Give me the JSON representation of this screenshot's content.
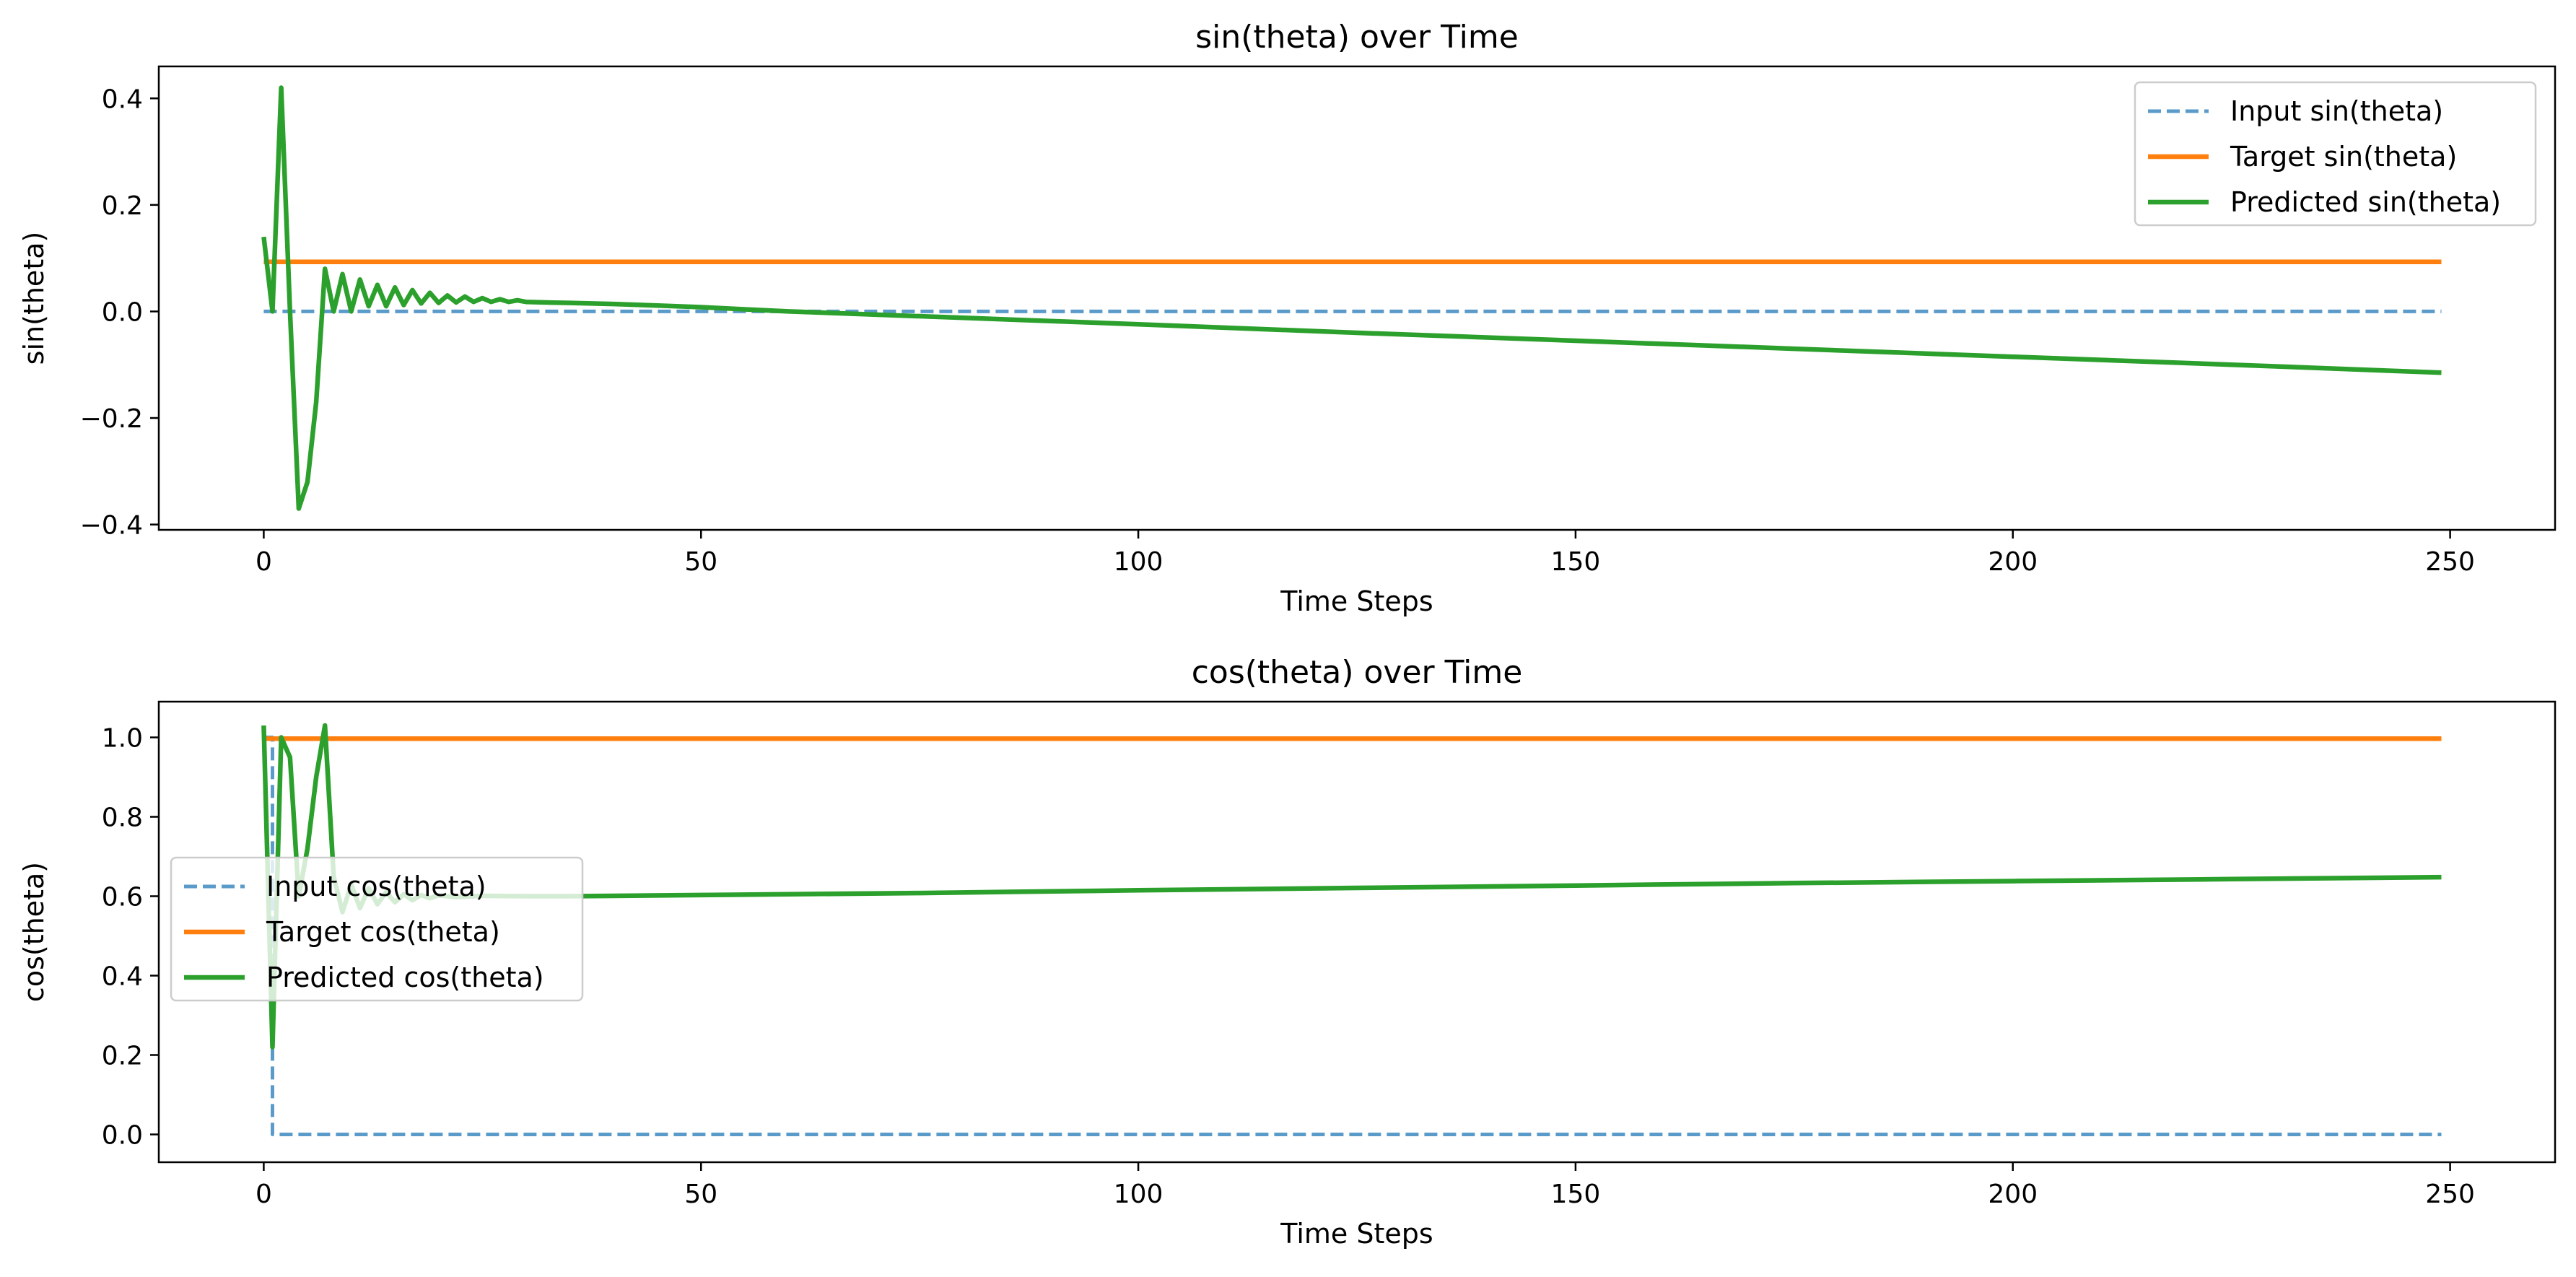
{
  "chart_data": [
    {
      "type": "line",
      "title": "sin(theta) over Time",
      "xlabel": "Time Steps",
      "ylabel": "sin(theta)",
      "xlim": [
        -12,
        262
      ],
      "ylim": [
        -0.41,
        0.46
      ],
      "xticks": [
        0,
        50,
        100,
        150,
        200,
        250
      ],
      "yticks": [
        -0.4,
        -0.2,
        0.0,
        0.2,
        0.4
      ],
      "ytick_labels": [
        "−0.4",
        "−0.2",
        "0.0",
        "0.2",
        "0.4"
      ],
      "grid": false,
      "legend_position": "upper right",
      "series": [
        {
          "name": "Input sin(theta)",
          "color": "#5b9bc9",
          "style": "dashed",
          "x": [
            0,
            1,
            2,
            249
          ],
          "y": [
            0.0,
            0.0,
            0.0,
            0.0
          ]
        },
        {
          "name": "Target sin(theta)",
          "color": "#ff7f0e",
          "style": "solid",
          "x": [
            0,
            249
          ],
          "y": [
            0.093,
            0.093
          ]
        },
        {
          "name": "Predicted sin(theta)",
          "color": "#2ca02c",
          "style": "solid",
          "x": [
            0,
            1,
            2,
            3,
            4,
            5,
            6,
            7,
            8,
            9,
            10,
            11,
            12,
            13,
            14,
            15,
            16,
            17,
            18,
            19,
            20,
            21,
            22,
            23,
            24,
            25,
            26,
            27,
            28,
            29,
            30,
            32,
            35,
            40,
            45,
            50,
            55,
            60,
            80,
            100,
            125,
            150,
            175,
            200,
            225,
            249
          ],
          "y": [
            0.14,
            0.0,
            0.42,
            0.0,
            -0.37,
            -0.32,
            -0.17,
            0.08,
            0.0,
            0.07,
            0.0,
            0.06,
            0.01,
            0.05,
            0.01,
            0.045,
            0.012,
            0.04,
            0.015,
            0.035,
            0.016,
            0.03,
            0.017,
            0.028,
            0.018,
            0.025,
            0.018,
            0.023,
            0.018,
            0.021,
            0.018,
            0.017,
            0.016,
            0.014,
            0.011,
            0.008,
            0.004,
            0.0,
            -0.012,
            -0.024,
            -0.04,
            -0.055,
            -0.07,
            -0.085,
            -0.1,
            -0.115
          ]
        }
      ]
    },
    {
      "type": "line",
      "title": "cos(theta) over Time",
      "xlabel": "Time Steps",
      "ylabel": "cos(theta)",
      "xlim": [
        -12,
        262
      ],
      "ylim": [
        -0.07,
        1.09
      ],
      "xticks": [
        0,
        50,
        100,
        150,
        200,
        250
      ],
      "yticks": [
        0.0,
        0.2,
        0.4,
        0.6,
        0.8,
        1.0
      ],
      "ytick_labels": [
        "0.0",
        "0.2",
        "0.4",
        "0.6",
        "0.8",
        "1.0"
      ],
      "grid": false,
      "legend_position": "center left",
      "series": [
        {
          "name": "Input cos(theta)",
          "color": "#5b9bc9",
          "style": "dashed",
          "x": [
            0,
            1,
            1,
            249
          ],
          "y": [
            1.0,
            1.0,
            0.0,
            0.0
          ]
        },
        {
          "name": "Target cos(theta)",
          "color": "#ff7f0e",
          "style": "solid",
          "x": [
            0,
            249
          ],
          "y": [
            0.997,
            0.997
          ]
        },
        {
          "name": "Predicted cos(theta)",
          "color": "#2ca02c",
          "style": "solid",
          "x": [
            0,
            1,
            2,
            3,
            4,
            5,
            6,
            7,
            8,
            9,
            10,
            11,
            12,
            13,
            14,
            15,
            16,
            17,
            18,
            19,
            20,
            22,
            25,
            30,
            35,
            40,
            50,
            75,
            100,
            125,
            150,
            175,
            200,
            225,
            249
          ],
          "y": [
            1.03,
            0.22,
            1.0,
            0.95,
            0.6,
            0.72,
            0.9,
            1.03,
            0.65,
            0.56,
            0.63,
            0.57,
            0.62,
            0.58,
            0.61,
            0.585,
            0.605,
            0.59,
            0.603,
            0.595,
            0.602,
            0.598,
            0.601,
            0.6,
            0.6,
            0.601,
            0.603,
            0.608,
            0.615,
            0.621,
            0.627,
            0.633,
            0.638,
            0.643,
            0.648
          ]
        }
      ]
    }
  ]
}
